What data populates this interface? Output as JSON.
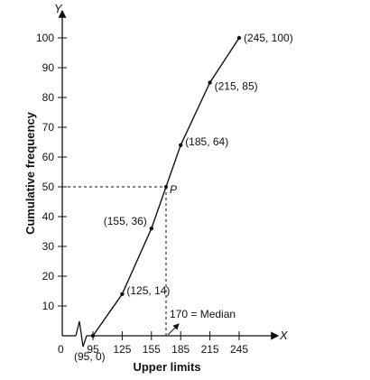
{
  "chart_data": {
    "type": "line",
    "title": "",
    "xlabel": "Upper limits",
    "ylabel": "Cumulative frequency",
    "x_axis_letter": "X",
    "y_axis_letter": "Y",
    "origin_label": "0",
    "xlim": [
      95,
      245
    ],
    "ylim": [
      0,
      100
    ],
    "x_ticks": [
      95,
      125,
      155,
      185,
      215,
      245
    ],
    "y_ticks": [
      10,
      20,
      30,
      40,
      50,
      60,
      70,
      80,
      90,
      100
    ],
    "x_tick_labels": [
      "95",
      "125",
      "155",
      "185",
      "215",
      "245"
    ],
    "y_tick_labels": [
      "10",
      "20",
      "30",
      "40",
      "50",
      "60",
      "70",
      "80",
      "90",
      "100"
    ],
    "grid": false,
    "series": [
      {
        "points": [
          {
            "x": 95,
            "y": 0,
            "label": "(95, 0)"
          },
          {
            "x": 125,
            "y": 14,
            "label": "(125, 14)"
          },
          {
            "x": 155,
            "y": 36,
            "label": "(155, 36)"
          },
          {
            "x": 185,
            "y": 64,
            "label": "(185, 64)"
          },
          {
            "x": 215,
            "y": 85,
            "label": "(215, 85)"
          },
          {
            "x": 245,
            "y": 100,
            "label": "(245, 100)"
          }
        ]
      }
    ],
    "median": {
      "x": 170,
      "y": 50,
      "point_label": "P",
      "annotation": "170 = Median"
    }
  }
}
